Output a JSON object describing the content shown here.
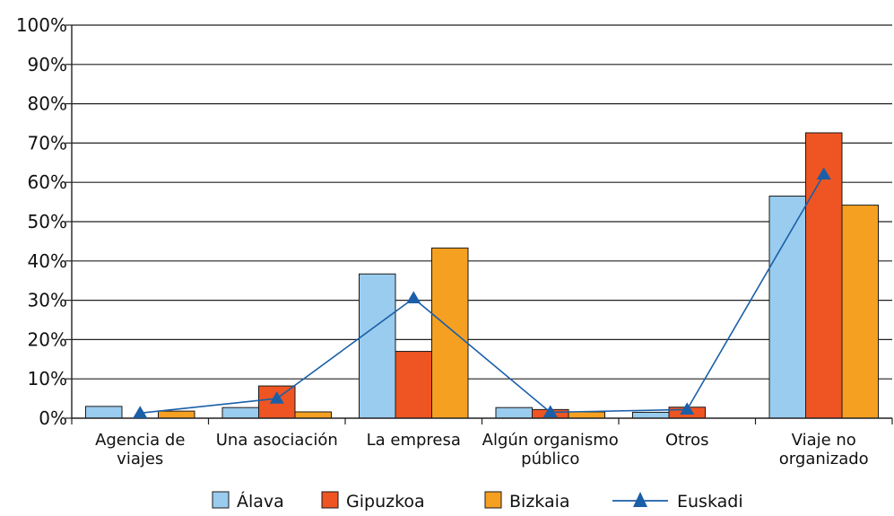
{
  "chart_data": {
    "type": "bar",
    "categories": [
      [
        "Agencia de",
        "viajes"
      ],
      [
        "Una asociación"
      ],
      [
        "La empresa"
      ],
      [
        "Algún organismo",
        "público"
      ],
      [
        "Otros"
      ],
      [
        "Viaje no",
        "organizado"
      ]
    ],
    "series": [
      {
        "name": "Álava",
        "type": "bar",
        "color": "#99CCEE",
        "values": [
          3,
          2.7,
          36.7,
          2.7,
          1.5,
          56.5
        ]
      },
      {
        "name": "Gipuzkoa",
        "type": "bar",
        "color": "#EE5522",
        "values": [
          0,
          8.2,
          17,
          2.2,
          2.8,
          72.6
        ]
      },
      {
        "name": "Bizkaia",
        "type": "bar",
        "color": "#F5A020",
        "values": [
          1.8,
          1.6,
          43.3,
          1.6,
          0,
          54.2
        ]
      },
      {
        "name": "Euskadi",
        "type": "line",
        "color": "#1A5FA8",
        "marker": "triangle",
        "values": [
          1.3,
          5,
          30.5,
          1.5,
          2.2,
          62
        ]
      }
    ],
    "yticks": [
      "0%",
      "10%",
      "20%",
      "30%",
      "40%",
      "50%",
      "60%",
      "70%",
      "80%",
      "90%",
      "100%"
    ],
    "ylim": [
      0,
      100
    ],
    "grid": true,
    "legend_position": "bottom"
  }
}
